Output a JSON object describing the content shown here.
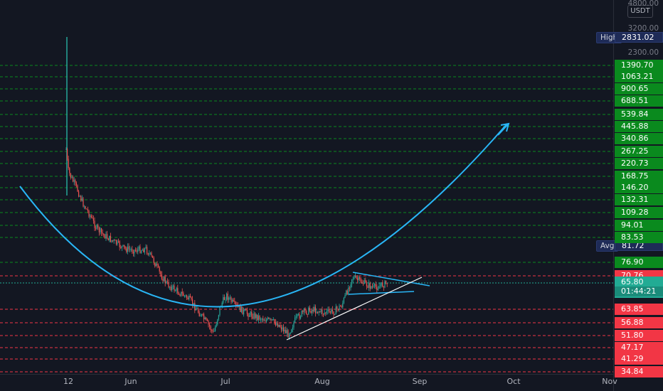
{
  "instrument": {
    "quote_unit": "USDT",
    "top_tick": "4800.00"
  },
  "price_axis": {
    "ticks": [
      "3200.00",
      "2300.00"
    ]
  },
  "markers": {
    "high_label": "High",
    "high_value": "2831.02",
    "avg_label": "Avg",
    "avg_value": "81.72"
  },
  "current_price": {
    "value": "65.80",
    "countdown": "01:44:21"
  },
  "resistance_levels": [
    "1390.70",
    "1063.21",
    "900.65",
    "688.51",
    "539.84",
    "445.88",
    "340.86",
    "267.25",
    "220.73",
    "168.75",
    "146.20",
    "132.31",
    "109.28",
    "94.01",
    "83.53",
    "76.90"
  ],
  "support_levels": [
    "70.76",
    "63.85",
    "56.88",
    "51.80",
    "47.17",
    "41.29",
    "34.84"
  ],
  "time_axis": [
    "12",
    "Jun",
    "Jul",
    "Aug",
    "Sep",
    "Oct",
    "Nov"
  ],
  "colors": {
    "background": "#131722",
    "resistance": "#0a8a1e",
    "support": "#f23645",
    "current": "#22ab94",
    "pattern_curve": "#29b6f6",
    "trendline": "#ffffff",
    "candle_up": "#26a69a",
    "candle_down": "#ef5350"
  },
  "annotations": {
    "cup_pattern": "parabola-arc",
    "target_arrow": "arrow-up-right",
    "triangle": "symmetrical-triangle",
    "support_trendline": "ascending-trendline"
  }
}
